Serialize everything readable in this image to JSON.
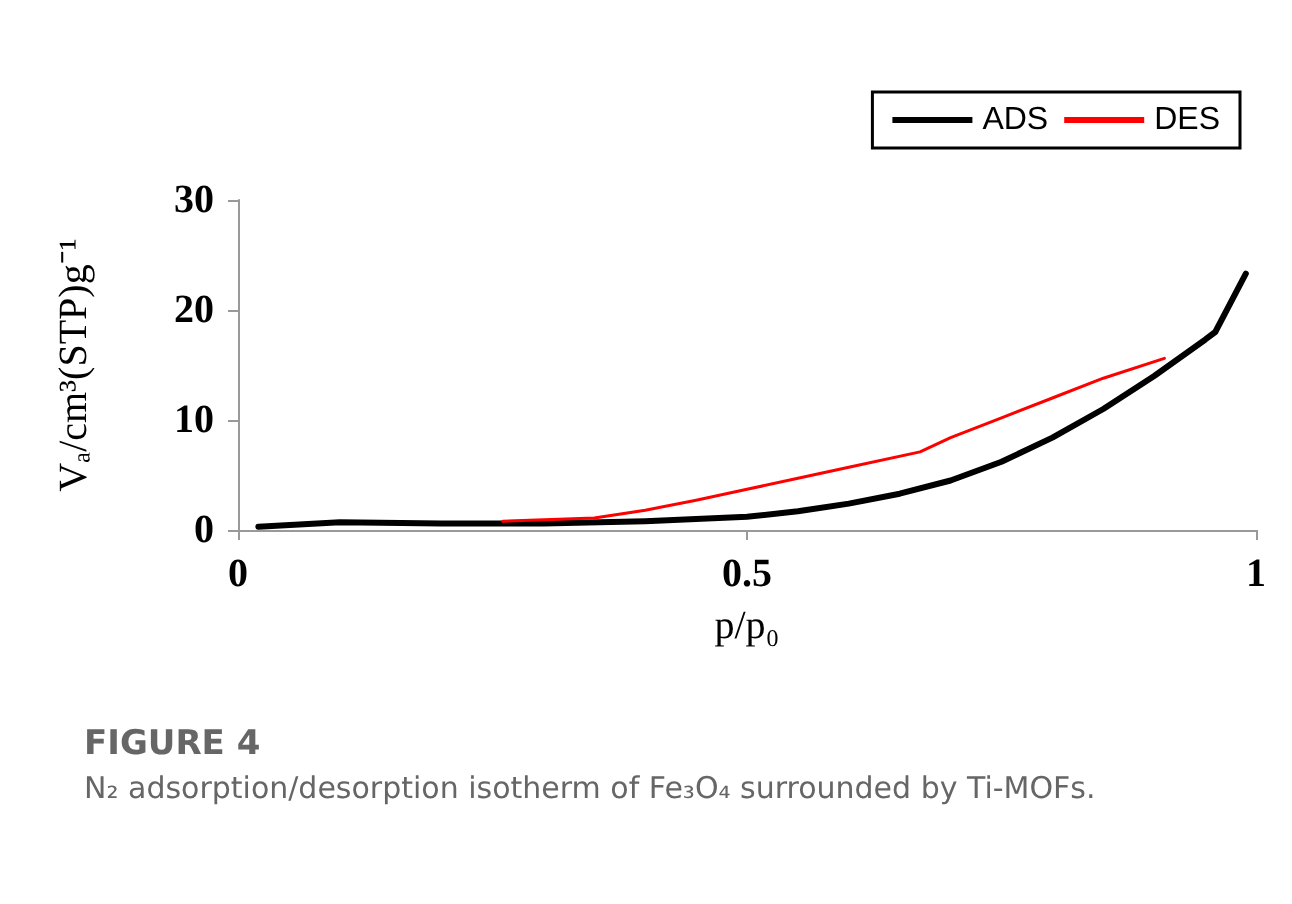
{
  "chart_data": {
    "type": "line",
    "title": "FIGURE 4",
    "annotations": [
      "N₂ adsorption/desorption isotherm of Fe₃O₄ surrounded by Ti-MOFs."
    ],
    "xlabel": "p/p₀",
    "ylabel": "Vₐ/cm³(STP)g⁻¹",
    "xlim": [
      0,
      1
    ],
    "xticks": [
      0,
      0.5,
      1
    ],
    "ylim": [
      0,
      30
    ],
    "yticks": [
      0,
      10,
      20,
      30
    ],
    "grid": false,
    "legend": "top right",
    "marker": "none",
    "line_style": "solid",
    "series": [
      {
        "name": "ADS",
        "color": "#000000",
        "x": [
          0.02,
          0.1,
          0.2,
          0.3,
          0.4,
          0.5,
          0.55,
          0.6,
          0.65,
          0.7,
          0.75,
          0.8,
          0.85,
          0.9,
          0.95,
          0.96,
          0.99
        ],
        "values": [
          0.3,
          0.7,
          0.6,
          0.6,
          0.8,
          1.2,
          1.7,
          2.4,
          3.3,
          4.5,
          6.2,
          8.4,
          11,
          14,
          17.3,
          18,
          23.3
        ]
      },
      {
        "name": "DES",
        "color": "#ff0000",
        "x": [
          0.26,
          0.35,
          0.4,
          0.45,
          0.5,
          0.55,
          0.6,
          0.67,
          0.7,
          0.75,
          0.8,
          0.85,
          0.91
        ],
        "values": [
          0.8,
          1.1,
          1.8,
          2.7,
          3.7,
          4.7,
          5.7,
          7.1,
          8.4,
          10.2,
          12,
          13.8,
          15.6
        ]
      }
    ]
  }
}
